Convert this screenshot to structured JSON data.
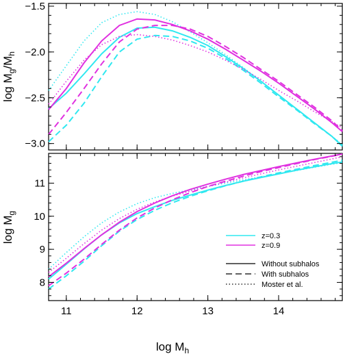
{
  "chart_data": {
    "type": "line",
    "xlabel": "log M",
    "xlabel_sub": "h",
    "colors": {
      "z=0.3": "#30e8f0",
      "z=0.9": "#e030e0"
    },
    "panels": [
      {
        "id": "top",
        "ylabel_parts": [
          "log M",
          "g",
          "/M",
          "h"
        ],
        "xlim": [
          10.75,
          14.9
        ],
        "ylim": [
          -3.07,
          -1.47
        ],
        "yticks": [
          -3.0,
          -2.5,
          -2.0,
          -1.5
        ],
        "ytick_labels": [
          "−3.0",
          "−2.5",
          "−2.0",
          "−1.5"
        ],
        "series": [
          {
            "color": "z=0.3",
            "style": "solid",
            "x": [
              10.75,
              11.0,
              11.25,
              11.5,
              11.75,
              12.0,
              12.25,
              12.5,
              12.75,
              13.0,
              13.25,
              13.5,
              13.75,
              14.0,
              14.25,
              14.5,
              14.75,
              14.9
            ],
            "y": [
              -2.62,
              -2.45,
              -2.24,
              -2.02,
              -1.84,
              -1.74,
              -1.73,
              -1.77,
              -1.84,
              -1.93,
              -2.05,
              -2.18,
              -2.32,
              -2.47,
              -2.62,
              -2.77,
              -2.92,
              -3.03
            ]
          },
          {
            "color": "z=0.3",
            "style": "dashed",
            "x": [
              10.75,
              11.0,
              11.25,
              11.5,
              11.75,
              12.0,
              12.25,
              12.5,
              12.75,
              13.0,
              13.25,
              13.5,
              13.75,
              14.0,
              14.25,
              14.5,
              14.75,
              14.9
            ],
            "y": [
              -2.98,
              -2.8,
              -2.56,
              -2.27,
              -2.0,
              -1.86,
              -1.82,
              -1.83,
              -1.88,
              -1.96,
              -2.07,
              -2.2,
              -2.34,
              -2.49,
              -2.63,
              -2.78,
              -2.92,
              -3.02
            ]
          },
          {
            "color": "z=0.3",
            "style": "dotted",
            "x": [
              10.75,
              11.0,
              11.25,
              11.5,
              11.75,
              12.0,
              12.25,
              12.5,
              12.75,
              13.0,
              13.25,
              13.5,
              13.75,
              14.0,
              14.25,
              14.5,
              14.75,
              14.9
            ],
            "y": [
              -2.42,
              -2.15,
              -1.88,
              -1.68,
              -1.59,
              -1.56,
              -1.59,
              -1.67,
              -1.78,
              -1.9,
              -2.03,
              -2.17,
              -2.32,
              -2.47,
              -2.62,
              -2.77,
              -2.92,
              -3.01
            ]
          },
          {
            "color": "z=0.9",
            "style": "solid",
            "x": [
              10.75,
              11.0,
              11.25,
              11.5,
              11.75,
              12.0,
              12.25,
              12.5,
              12.75,
              13.0,
              13.25,
              13.5,
              13.75,
              14.0,
              14.25,
              14.5,
              14.75,
              14.9
            ],
            "y": [
              -2.63,
              -2.4,
              -2.12,
              -1.88,
              -1.71,
              -1.64,
              -1.65,
              -1.7,
              -1.77,
              -1.86,
              -1.97,
              -2.09,
              -2.21,
              -2.34,
              -2.48,
              -2.62,
              -2.77,
              -2.87
            ]
          },
          {
            "color": "z=0.9",
            "style": "dashed",
            "x": [
              10.75,
              11.0,
              11.25,
              11.5,
              11.75,
              12.0,
              12.25,
              12.5,
              12.75,
              13.0,
              13.25,
              13.5,
              13.75,
              14.0,
              14.25,
              14.5,
              14.75,
              14.9
            ],
            "y": [
              -2.9,
              -2.66,
              -2.4,
              -2.13,
              -1.89,
              -1.75,
              -1.71,
              -1.71,
              -1.75,
              -1.83,
              -1.94,
              -2.06,
              -2.19,
              -2.32,
              -2.46,
              -2.6,
              -2.75,
              -2.86
            ]
          },
          {
            "color": "z=0.9",
            "style": "dotted",
            "x": [
              10.75,
              11.0,
              11.25,
              11.5,
              11.75,
              12.0,
              12.25,
              12.5,
              12.75,
              13.0,
              13.25,
              13.5,
              13.75,
              14.0,
              14.25,
              14.5,
              14.75,
              14.9
            ],
            "y": [
              -2.57,
              -2.32,
              -2.09,
              -1.92,
              -1.83,
              -1.81,
              -1.83,
              -1.87,
              -1.93,
              -2.0,
              -2.09,
              -2.19,
              -2.3,
              -2.42,
              -2.53,
              -2.65,
              -2.76,
              -2.83
            ]
          }
        ]
      },
      {
        "id": "bottom",
        "ylabel_parts": [
          "log M",
          "g"
        ],
        "xlim": [
          10.75,
          14.9
        ],
        "ylim": [
          7.45,
          11.9
        ],
        "yticks": [
          8,
          9,
          10,
          11
        ],
        "ytick_labels": [
          "8",
          "9",
          "10",
          "11"
        ],
        "series": [
          {
            "color": "z=0.3",
            "style": "solid",
            "x": [
              10.75,
              11.0,
              11.25,
              11.5,
              11.75,
              12.0,
              12.25,
              12.5,
              12.75,
              13.0,
              13.25,
              13.5,
              13.75,
              14.0,
              14.25,
              14.5,
              14.75,
              14.9
            ],
            "y": [
              8.1,
              8.55,
              9.01,
              9.44,
              9.8,
              10.08,
              10.29,
              10.48,
              10.64,
              10.79,
              10.93,
              11.06,
              11.17,
              11.28,
              11.39,
              11.49,
              11.59,
              11.64
            ]
          },
          {
            "color": "z=0.3",
            "style": "dashed",
            "x": [
              10.75,
              11.0,
              11.25,
              11.5,
              11.75,
              12.0,
              12.25,
              12.5,
              12.75,
              13.0,
              13.25,
              13.5,
              13.75,
              14.0,
              14.25,
              14.5,
              14.75,
              14.9
            ],
            "y": [
              7.8,
              8.2,
              8.64,
              9.11,
              9.55,
              9.9,
              10.18,
              10.41,
              10.6,
              10.77,
              10.92,
              11.06,
              11.19,
              11.31,
              11.42,
              11.53,
              11.63,
              11.69
            ]
          },
          {
            "color": "z=0.3",
            "style": "dotted",
            "x": [
              10.75,
              11.0,
              11.25,
              11.5,
              11.75,
              12.0,
              12.25,
              12.5,
              12.75,
              13.0,
              13.25,
              13.5,
              13.75,
              14.0,
              14.25,
              14.5,
              14.75,
              14.9
            ],
            "y": [
              8.4,
              8.9,
              9.38,
              9.8,
              10.13,
              10.38,
              10.56,
              10.69,
              10.8,
              10.9,
              11.0,
              11.1,
              11.19,
              11.29,
              11.38,
              11.48,
              11.57,
              11.62
            ]
          },
          {
            "color": "z=0.9",
            "style": "solid",
            "x": [
              10.75,
              11.0,
              11.25,
              11.5,
              11.75,
              12.0,
              12.25,
              12.5,
              12.75,
              13.0,
              13.25,
              13.5,
              13.75,
              14.0,
              14.25,
              14.5,
              14.75,
              14.9
            ],
            "y": [
              8.17,
              8.58,
              9.02,
              9.44,
              9.82,
              10.14,
              10.4,
              10.62,
              10.81,
              10.97,
              11.12,
              11.26,
              11.38,
              11.5,
              11.61,
              11.72,
              11.82,
              11.88
            ]
          },
          {
            "color": "z=0.9",
            "style": "dashed",
            "x": [
              10.75,
              11.0,
              11.25,
              11.5,
              11.75,
              12.0,
              12.25,
              12.5,
              12.75,
              13.0,
              13.25,
              13.5,
              13.75,
              14.0,
              14.25,
              14.5,
              14.75,
              14.9
            ],
            "y": [
              7.9,
              8.28,
              8.7,
              9.15,
              9.58,
              9.95,
              10.25,
              10.5,
              10.71,
              10.9,
              11.06,
              11.21,
              11.35,
              11.47,
              11.59,
              11.71,
              11.81,
              11.88
            ]
          },
          {
            "color": "z=0.9",
            "style": "dotted",
            "x": [
              10.75,
              11.0,
              11.25,
              11.5,
              11.75,
              12.0,
              12.25,
              12.5,
              12.75,
              13.0,
              13.25,
              13.5,
              13.75,
              14.0,
              14.25,
              14.5,
              14.75,
              14.9
            ],
            "y": [
              8.3,
              8.73,
              9.17,
              9.58,
              9.93,
              10.21,
              10.43,
              10.61,
              10.76,
              10.9,
              11.03,
              11.16,
              11.28,
              11.4,
              11.51,
              11.62,
              11.73,
              11.8
            ]
          }
        ]
      }
    ],
    "xticks": [
      11,
      12,
      13,
      14
    ],
    "xtick_labels": [
      "11",
      "12",
      "13",
      "14"
    ],
    "legend": {
      "placement": "lower-right of bottom panel",
      "color_entries": [
        {
          "label": "z=0.3",
          "color": "#30e8f0"
        },
        {
          "label": "z=0.9",
          "color": "#e030e0"
        }
      ],
      "style_entries": [
        {
          "label": "Without subhalos",
          "style": "solid"
        },
        {
          "label": "With subhalos",
          "style": "dashed"
        },
        {
          "label": "Moster et al.",
          "style": "dotted"
        }
      ]
    }
  }
}
